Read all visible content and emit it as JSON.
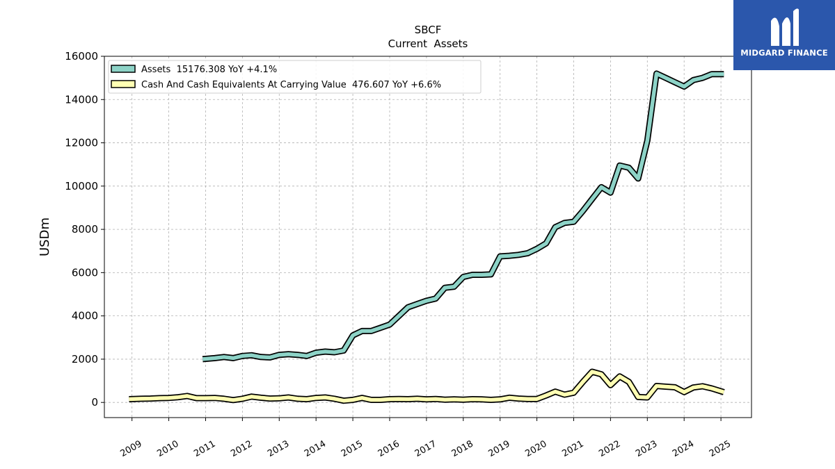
{
  "chart_data": {
    "type": "line",
    "title": "SBCF",
    "subtitle": "Current  Assets",
    "xlabel": "",
    "ylabel": "USDm",
    "ylim": [
      -700,
      16000
    ],
    "xlim": [
      2008.25,
      2025.83
    ],
    "yticks": [
      0,
      2000,
      4000,
      6000,
      8000,
      10000,
      12000,
      14000,
      16000
    ],
    "xticks": [
      "2009",
      "2010",
      "2011",
      "2012",
      "2013",
      "2014",
      "2015",
      "2016",
      "2017",
      "2018",
      "2019",
      "2020",
      "2021",
      "2022",
      "2023",
      "2024",
      "2025"
    ],
    "grid": true,
    "legend_position": "top-left",
    "series": [
      {
        "name": "Assets  15176.308 YoY +4.1%",
        "color": "#8dd3c7",
        "x": [
          2010.92,
          2011.25,
          2011.5,
          2011.75,
          2012.0,
          2012.25,
          2012.5,
          2012.75,
          2013.0,
          2013.25,
          2013.5,
          2013.75,
          2014.0,
          2014.25,
          2014.5,
          2014.75,
          2015.0,
          2015.25,
          2015.5,
          2015.75,
          2016.0,
          2016.25,
          2016.5,
          2016.75,
          2017.0,
          2017.25,
          2017.5,
          2017.75,
          2018.0,
          2018.25,
          2018.5,
          2018.75,
          2019.0,
          2019.25,
          2019.5,
          2019.75,
          2020.0,
          2020.25,
          2020.5,
          2020.75,
          2021.0,
          2021.25,
          2021.5,
          2021.75,
          2022.0,
          2022.25,
          2022.5,
          2022.75,
          2023.0,
          2023.25,
          2023.5,
          2023.75,
          2024.0,
          2024.25,
          2024.5,
          2024.75,
          2025.08
        ],
        "y": [
          2000,
          2050,
          2100,
          2050,
          2150,
          2180,
          2100,
          2080,
          2200,
          2230,
          2200,
          2150,
          2300,
          2350,
          2320,
          2400,
          3100,
          3300,
          3300,
          3450,
          3600,
          4000,
          4400,
          4550,
          4700,
          4800,
          5300,
          5350,
          5800,
          5900,
          5900,
          5920,
          6750,
          6780,
          6820,
          6900,
          7100,
          7350,
          8100,
          8300,
          8350,
          8850,
          9400,
          9950,
          9700,
          10950,
          10850,
          10350,
          12100,
          15200,
          15000,
          14800,
          14600,
          14900,
          15000,
          15176,
          15176
        ]
      },
      {
        "name": "Cash And Cash Equivalents At Carrying Value  476.607 YoY +6.6%",
        "color": "#ffffb3",
        "x": [
          2008.92,
          2009.25,
          2009.5,
          2009.75,
          2010.0,
          2010.25,
          2010.5,
          2010.75,
          2011.0,
          2011.25,
          2011.5,
          2011.75,
          2012.0,
          2012.25,
          2012.5,
          2012.75,
          2013.0,
          2013.25,
          2013.5,
          2013.75,
          2014.0,
          2014.25,
          2014.5,
          2014.75,
          2015.0,
          2015.25,
          2015.5,
          2015.75,
          2016.0,
          2016.25,
          2016.5,
          2016.75,
          2017.0,
          2017.25,
          2017.5,
          2017.75,
          2018.0,
          2018.25,
          2018.5,
          2018.75,
          2019.0,
          2019.25,
          2019.5,
          2019.75,
          2020.0,
          2020.25,
          2020.5,
          2020.75,
          2021.0,
          2021.25,
          2021.5,
          2021.75,
          2022.0,
          2022.25,
          2022.5,
          2022.75,
          2023.0,
          2023.25,
          2023.5,
          2023.75,
          2024.0,
          2024.25,
          2024.5,
          2024.75,
          2025.08
        ],
        "y": [
          150,
          170,
          180,
          200,
          210,
          240,
          300,
          200,
          200,
          210,
          170,
          110,
          170,
          270,
          220,
          180,
          190,
          230,
          170,
          150,
          210,
          230,
          170,
          80,
          120,
          210,
          120,
          120,
          150,
          160,
          150,
          170,
          140,
          160,
          130,
          140,
          130,
          150,
          140,
          120,
          140,
          220,
          180,
          160,
          160,
          320,
          500,
          360,
          450,
          950,
          1420,
          1300,
          800,
          1200,
          950,
          250,
          230,
          760,
          730,
          700,
          480,
          690,
          750,
          650,
          476
        ]
      }
    ]
  },
  "logo": {
    "text": "MIDGARD FINANCE"
  }
}
